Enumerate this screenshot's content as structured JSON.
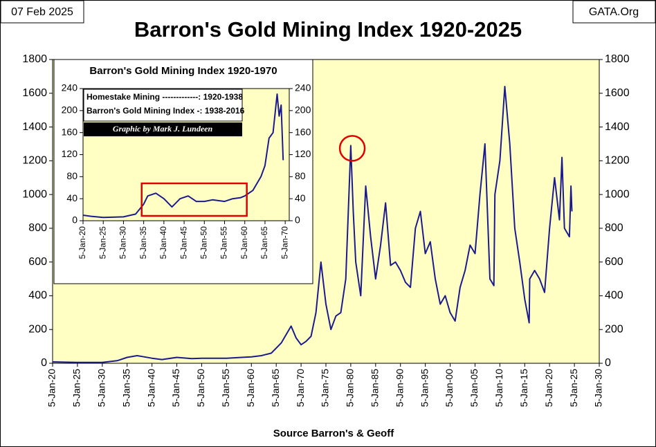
{
  "header": {
    "date": "07 Feb 2025",
    "site": "GATA.Org"
  },
  "chart_data": [
    {
      "type": "line",
      "title": "Barron's Gold Mining Index 1920-2025",
      "x_label": "Source Barron's & Geoff",
      "color": "#1a1a8c",
      "x": [
        1920,
        1925,
        1930,
        1933,
        1935,
        1937,
        1938,
        1940,
        1942,
        1945,
        1948,
        1950,
        1955,
        1958,
        1960,
        1962,
        1964,
        1966,
        1968,
        1969,
        1970,
        1971,
        1972,
        1973,
        1974,
        1975,
        1976,
        1977,
        1978,
        1979,
        1980,
        1980.5,
        1981,
        1982,
        1983,
        1984,
        1985,
        1986,
        1987,
        1988,
        1989,
        1990,
        1991,
        1992,
        1993,
        1994,
        1995,
        1996,
        1997,
        1998,
        1999,
        2000,
        2001,
        2002,
        2003,
        2004,
        2005,
        2006,
        2007,
        2008,
        2008.8,
        2009,
        2010,
        2011,
        2012,
        2013,
        2014,
        2015,
        2015.9,
        2016,
        2017,
        2018,
        2019,
        2020,
        2021,
        2022,
        2022.5,
        2023,
        2024,
        2024.3,
        2024.5
      ],
      "values": [
        8,
        5,
        5,
        15,
        35,
        45,
        40,
        30,
        22,
        35,
        28,
        30,
        30,
        35,
        38,
        45,
        60,
        120,
        220,
        150,
        110,
        130,
        160,
        300,
        600,
        350,
        200,
        280,
        300,
        500,
        1290,
        900,
        600,
        400,
        1050,
        750,
        500,
        700,
        950,
        580,
        600,
        550,
        480,
        450,
        800,
        900,
        650,
        720,
        500,
        350,
        400,
        300,
        250,
        450,
        550,
        700,
        650,
        1000,
        1300,
        500,
        460,
        1000,
        1200,
        1640,
        1300,
        800,
        600,
        380,
        240,
        500,
        550,
        500,
        420,
        800,
        1100,
        850,
        1220,
        800,
        750,
        1050,
        900
      ],
      "xlim": [
        1920,
        2030
      ],
      "xticks": [
        {
          "value": 1920,
          "label": "5-Jan-20"
        },
        {
          "value": 1925,
          "label": "5-Jan-25"
        },
        {
          "value": 1930,
          "label": "5-Jan-30"
        },
        {
          "value": 1935,
          "label": "5-Jan-35"
        },
        {
          "value": 1940,
          "label": "5-Jan-40"
        },
        {
          "value": 1945,
          "label": "5-Jan-45"
        },
        {
          "value": 1950,
          "label": "5-Jan-50"
        },
        {
          "value": 1955,
          "label": "5-Jan-55"
        },
        {
          "value": 1960,
          "label": "5-Jan-60"
        },
        {
          "value": 1965,
          "label": "5-Jan-65"
        },
        {
          "value": 1970,
          "label": "5-Jan-70"
        },
        {
          "value": 1975,
          "label": "5-Jan-75"
        },
        {
          "value": 1980,
          "label": "5-Jan-80"
        },
        {
          "value": 1985,
          "label": "5-Jan-85"
        },
        {
          "value": 1990,
          "label": "5-Jan-90"
        },
        {
          "value": 1995,
          "label": "5-Jan-95"
        },
        {
          "value": 2000,
          "label": "5-Jan-00"
        },
        {
          "value": 2005,
          "label": "5-Jan-05"
        },
        {
          "value": 2010,
          "label": "5-Jan-10"
        },
        {
          "value": 2015,
          "label": "5-Jan-15"
        },
        {
          "value": 2020,
          "label": "5-Jan-20"
        },
        {
          "value": 2025,
          "label": "5-Jan-25"
        },
        {
          "value": 2030,
          "label": "5-Jan-30"
        }
      ],
      "ylim": [
        0,
        1800
      ],
      "yticks": [
        0,
        200,
        400,
        600,
        800,
        1000,
        1200,
        1400,
        1600,
        1800
      ],
      "y2lim": [
        0,
        1800
      ],
      "y2ticks": [
        0,
        200,
        400,
        600,
        800,
        1000,
        1200,
        1400,
        1600,
        1800
      ],
      "grid": false
    },
    {
      "type": "line",
      "title": "Barron's Gold Mining Index 1920-1970",
      "notes": [
        "Homestake Mining -------------: 1920-1938",
        "Barron's Gold Mining Index -: 1938-2016"
      ],
      "credit": "Graphic by Mark J. Lundeen",
      "color": "#1a1a8c",
      "x": [
        1920,
        1922,
        1925,
        1930,
        1933,
        1935,
        1936,
        1938,
        1940,
        1942,
        1944,
        1946,
        1948,
        1950,
        1952,
        1955,
        1957,
        1959,
        1960,
        1962,
        1964,
        1965,
        1966,
        1967,
        1968,
        1968.5,
        1969,
        1969.5
      ],
      "values": [
        10,
        8,
        6,
        7,
        12,
        30,
        45,
        50,
        40,
        25,
        40,
        45,
        35,
        35,
        38,
        35,
        40,
        42,
        45,
        55,
        80,
        100,
        150,
        160,
        230,
        190,
        210,
        110
      ],
      "xlim": [
        1920,
        1971
      ],
      "xticks": [
        {
          "value": 1920,
          "label": "5-Jan-20"
        },
        {
          "value": 1925,
          "label": "5-Jan-25"
        },
        {
          "value": 1930,
          "label": "5-Jan-30"
        },
        {
          "value": 1935,
          "label": "5-Jan-35"
        },
        {
          "value": 1940,
          "label": "5-Jan-40"
        },
        {
          "value": 1945,
          "label": "5-Jan-45"
        },
        {
          "value": 1950,
          "label": "5-Jan-50"
        },
        {
          "value": 1955,
          "label": "5-Jan-55"
        },
        {
          "value": 1960,
          "label": "5-Jan-60"
        },
        {
          "value": 1965,
          "label": "5-Jan-65"
        },
        {
          "value": 1970,
          "label": "5-Jan-70"
        }
      ],
      "ylim": [
        0,
        240
      ],
      "yticks": [
        0,
        40,
        80,
        120,
        160,
        200,
        240
      ],
      "y2lim": [
        0,
        240
      ],
      "y2ticks": [
        0,
        40,
        80,
        120,
        160,
        200,
        240
      ],
      "grid": false
    }
  ]
}
